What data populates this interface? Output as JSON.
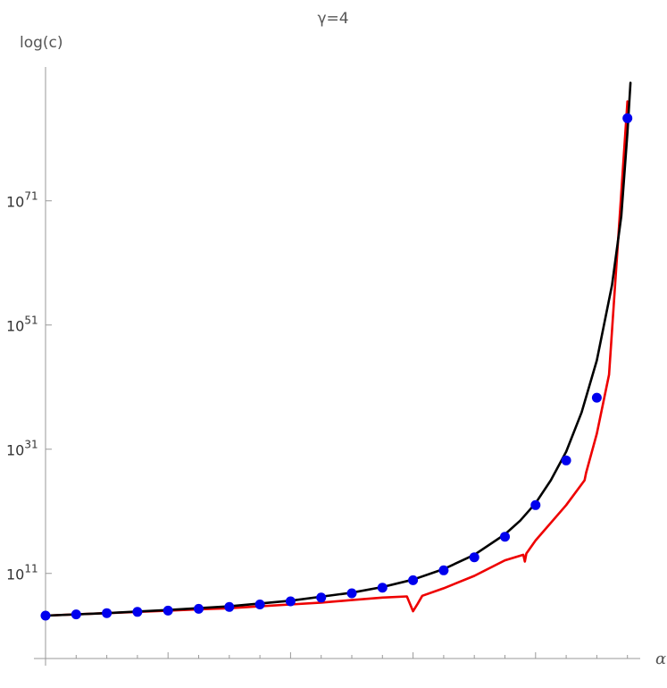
{
  "chart_data": {
    "type": "line",
    "title": "γ=4",
    "xlabel": "α",
    "ylabel": "log(c)",
    "y_scale": "log10",
    "ylim_exponent": [
      -1,
      94
    ],
    "xlim": [
      0,
      19.5
    ],
    "y_ticks": [
      {
        "base": "10",
        "exp": "11",
        "value_exponent": 11
      },
      {
        "base": "10",
        "exp": "31",
        "value_exponent": 31
      },
      {
        "base": "10",
        "exp": "51",
        "value_exponent": 51
      },
      {
        "base": "10",
        "exp": "71",
        "value_exponent": 71
      }
    ],
    "grid": false,
    "series": [
      {
        "color": "#0000ee",
        "style": "points",
        "x": [
          0,
          1,
          2,
          3,
          4,
          5,
          6,
          7,
          8,
          9,
          10,
          11,
          12,
          13,
          14,
          15,
          16,
          17,
          18,
          19
        ],
        "log10_y": [
          4.2,
          4.4,
          4.6,
          4.8,
          5.0,
          5.3,
          5.6,
          6.0,
          6.5,
          7.1,
          7.8,
          8.7,
          9.9,
          11.5,
          13.6,
          16.9,
          22.0,
          29.2,
          39.3,
          84.3
        ]
      },
      {
        "color": "#ee0000",
        "style": "line",
        "x": [
          0,
          1,
          2,
          3,
          4,
          5,
          6,
          7,
          8,
          9,
          10,
          11,
          11.8,
          12,
          12.15,
          12.3,
          13,
          14,
          15,
          15.6,
          15.65,
          15.7,
          16,
          17,
          17.6,
          17.65,
          18,
          18.4,
          19
        ],
        "log10_y": [
          4.2,
          4.4,
          4.6,
          4.8,
          5.0,
          5.2,
          5.4,
          5.7,
          6.0,
          6.3,
          6.7,
          7.1,
          7.3,
          4.9,
          6.1,
          7.4,
          8.6,
          10.6,
          13.1,
          14.0,
          12.9,
          14.2,
          16.3,
          22.0,
          26.0,
          27.2,
          33.5,
          43.0,
          87.0
        ]
      },
      {
        "color": "#000000",
        "style": "line",
        "x": [
          0,
          2,
          4,
          6,
          8,
          10,
          11,
          12,
          13,
          14,
          15,
          15.5,
          16,
          16.5,
          17,
          17.5,
          18,
          18.5,
          18.8,
          19,
          19.1
        ],
        "log10_y": [
          4.2,
          4.6,
          5.1,
          5.7,
          6.6,
          7.9,
          8.8,
          10.0,
          11.7,
          14.0,
          17.3,
          19.5,
          22.3,
          26.0,
          30.6,
          36.9,
          45.3,
          57.5,
          68.5,
          82.0,
          90.0
        ]
      }
    ]
  }
}
